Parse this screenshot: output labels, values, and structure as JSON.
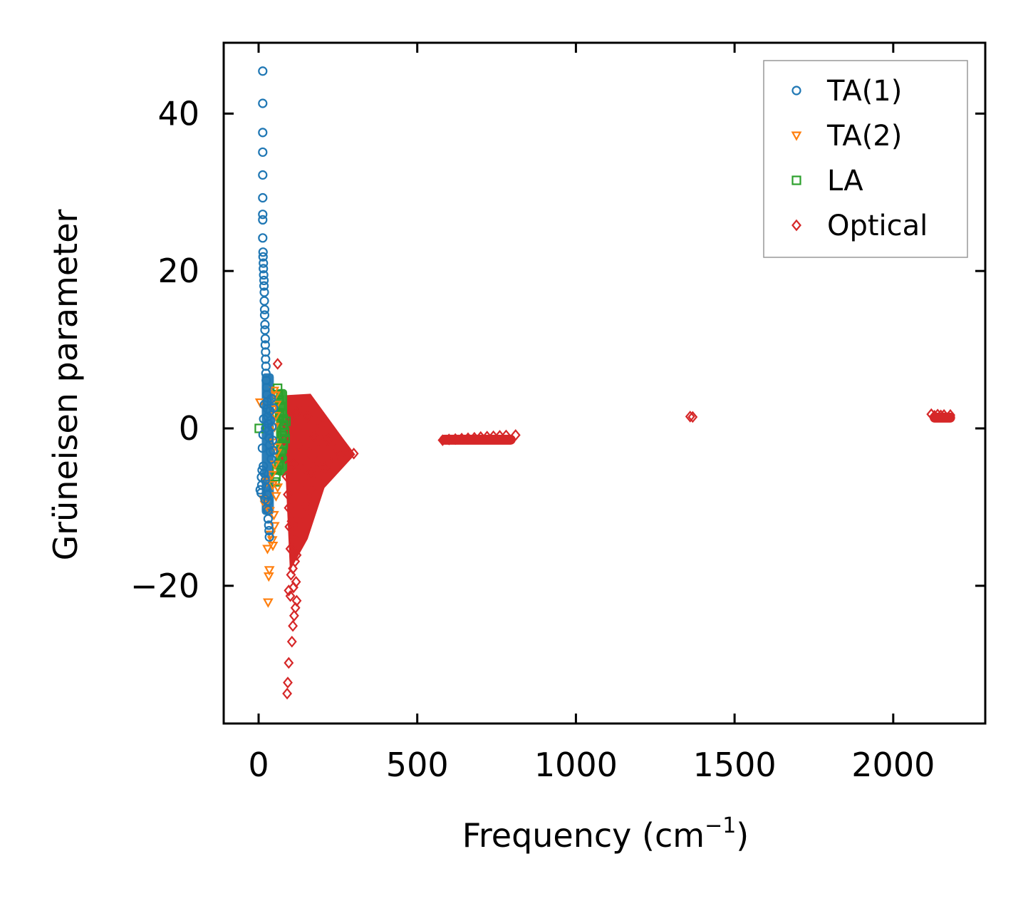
{
  "chart_data": {
    "type": "scatter",
    "title": "",
    "xlabel": "Frequency (cm",
    "xlabel_sup": "−1",
    "xlabel_end": ")",
    "ylabel": "Grüneisen parameter",
    "xlim": [
      -110,
      2290
    ],
    "ylim": [
      -37.5,
      49
    ],
    "xticks": [
      0,
      500,
      1000,
      1500,
      2000
    ],
    "xtick_labels": [
      "0",
      "500",
      "1000",
      "1500",
      "2000"
    ],
    "yticks": [
      -20,
      0,
      20,
      40
    ],
    "ytick_labels": [
      "−20",
      "0",
      "20",
      "40"
    ],
    "grid": false,
    "legend_position": "top-right",
    "series": [
      {
        "name": "TA(1)",
        "marker": "circle",
        "color": "#1f77b4",
        "points": [
          [
            13,
            45.4
          ],
          [
            13,
            41.3
          ],
          [
            13,
            37.6
          ],
          [
            13,
            35.1
          ],
          [
            13,
            32.2
          ],
          [
            13,
            29.3
          ],
          [
            13,
            27.2
          ],
          [
            13,
            26.5
          ],
          [
            13,
            24.2
          ],
          [
            14,
            22.4
          ],
          [
            14,
            21.8
          ],
          [
            15,
            21.0
          ],
          [
            15,
            20.3
          ],
          [
            16,
            19.5
          ],
          [
            17,
            18.8
          ],
          [
            17,
            18.1
          ],
          [
            18,
            17.3
          ],
          [
            18,
            16.2
          ],
          [
            19,
            15.1
          ],
          [
            19,
            14.4
          ],
          [
            20,
            13.2
          ],
          [
            20,
            12.5
          ],
          [
            21,
            11.4
          ],
          [
            21,
            10.6
          ],
          [
            22,
            9.7
          ],
          [
            22,
            8.8
          ],
          [
            23,
            7.9
          ],
          [
            23,
            7.0
          ],
          [
            24,
            6.1
          ],
          [
            25,
            5.2
          ],
          [
            26,
            4.3
          ],
          [
            27,
            3.4
          ],
          [
            28,
            2.5
          ],
          [
            29,
            1.5
          ],
          [
            30,
            0.6
          ],
          [
            31,
            -0.3
          ],
          [
            33,
            -1.2
          ],
          [
            35,
            -2.1
          ],
          [
            37,
            -3.0
          ],
          [
            40,
            -3.9
          ],
          [
            15,
            -4.8
          ],
          [
            18,
            -5.7
          ],
          [
            21,
            -6.6
          ],
          [
            24,
            -7.5
          ],
          [
            5,
            -7.8
          ],
          [
            8,
            -8.2
          ],
          [
            10,
            -7.2
          ],
          [
            27,
            -8.4
          ],
          [
            30,
            -9.3
          ],
          [
            30,
            -10.4
          ],
          [
            30,
            -11.5
          ],
          [
            32,
            -12.3
          ],
          [
            33,
            -13.0
          ],
          [
            34,
            -13.8
          ],
          [
            12,
            -2.5
          ],
          [
            14,
            -0.8
          ],
          [
            16,
            1.2
          ],
          [
            18,
            3.0
          ],
          [
            36,
            2.2
          ],
          [
            38,
            1.0
          ],
          [
            40,
            3.8
          ],
          [
            42,
            0.2
          ],
          [
            44,
            -1.5
          ],
          [
            46,
            -2.8
          ],
          [
            20,
            -9.0
          ],
          [
            25,
            -10.2
          ],
          [
            11,
            -5.3
          ],
          [
            9,
            -6.2
          ],
          [
            47,
            2.6
          ],
          [
            22,
            0.0
          ]
        ]
      },
      {
        "name": "TA(2)",
        "marker": "triangle-down",
        "color": "#ff7f0e",
        "points": [
          [
            30,
            -22.1
          ],
          [
            32,
            -18.8
          ],
          [
            34,
            -18.0
          ],
          [
            28,
            -15.3
          ],
          [
            45,
            -14.9
          ],
          [
            43,
            -14.2
          ],
          [
            38,
            -13.5
          ],
          [
            50,
            -12.4
          ],
          [
            48,
            -11.0
          ],
          [
            35,
            -10.5
          ],
          [
            20,
            -9.7
          ],
          [
            15,
            -9.0
          ],
          [
            55,
            -8.6
          ],
          [
            60,
            -7.5
          ],
          [
            25,
            -6.8
          ],
          [
            42,
            -5.9
          ],
          [
            52,
            -4.6
          ],
          [
            58,
            -3.1
          ],
          [
            47,
            -1.8
          ],
          [
            50,
            0.2
          ],
          [
            54,
            1.6
          ],
          [
            56,
            3.0
          ],
          [
            53,
            4.2
          ],
          [
            49,
            4.8
          ],
          [
            45,
            2.4
          ],
          [
            5,
            3.3
          ],
          [
            57,
            -2.4
          ],
          [
            44,
            -7.2
          ]
        ]
      },
      {
        "name": "LA",
        "marker": "square",
        "color": "#2ca02c",
        "points": [
          [
            2,
            0.0
          ],
          [
            60,
            5.1
          ],
          [
            62,
            4.3
          ],
          [
            65,
            3.6
          ],
          [
            70,
            2.8
          ],
          [
            75,
            2.0
          ],
          [
            78,
            1.2
          ],
          [
            80,
            0.4
          ],
          [
            82,
            -0.5
          ],
          [
            84,
            -1.3
          ],
          [
            78,
            -2.1
          ],
          [
            72,
            -3.0
          ],
          [
            68,
            -3.8
          ],
          [
            64,
            -4.6
          ],
          [
            58,
            -5.3
          ],
          [
            55,
            -6.1
          ],
          [
            52,
            -6.8
          ],
          [
            66,
            1.6
          ],
          [
            74,
            -0.9
          ],
          [
            86,
            0.9
          ]
        ]
      },
      {
        "name": "Optical",
        "marker": "diamond",
        "color": "#d62728",
        "points": [
          [
            90,
            -33.7
          ],
          [
            92,
            -32.3
          ],
          [
            95,
            -29.8
          ],
          [
            105,
            -27.1
          ],
          [
            108,
            -25.1
          ],
          [
            112,
            -23.8
          ],
          [
            116,
            -22.8
          ],
          [
            120,
            -21.9
          ],
          [
            100,
            -21.3
          ],
          [
            95,
            -20.6
          ],
          [
            110,
            -20.2
          ],
          [
            118,
            -19.5
          ],
          [
            102,
            -18.6
          ],
          [
            108,
            -17.8
          ],
          [
            115,
            -16.9
          ],
          [
            120,
            -16.1
          ],
          [
            100,
            -15.3
          ],
          [
            112,
            -14.2
          ],
          [
            125,
            -13.1
          ],
          [
            130,
            -12.0
          ],
          [
            97,
            -12.5
          ],
          [
            104,
            -11.8
          ],
          [
            140,
            -10.9
          ],
          [
            150,
            -9.8
          ],
          [
            160,
            -8.8
          ],
          [
            170,
            -7.8
          ],
          [
            180,
            -6.9
          ],
          [
            195,
            -5.9
          ],
          [
            210,
            -5.0
          ],
          [
            225,
            -4.4
          ],
          [
            240,
            -3.9
          ],
          [
            260,
            -3.5
          ],
          [
            280,
            -3.3
          ],
          [
            300,
            -3.2
          ],
          [
            140,
            -5.2
          ],
          [
            160,
            -3.1
          ],
          [
            175,
            -1.0
          ],
          [
            190,
            0.9
          ],
          [
            150,
            2.8
          ],
          [
            120,
            2.0
          ],
          [
            100,
            1.2
          ],
          [
            90,
            0.3
          ],
          [
            60,
            8.2
          ],
          [
            80,
            -1.5
          ],
          [
            85,
            -3.8
          ],
          [
            88,
            -6.1
          ],
          [
            92,
            -8.4
          ],
          [
            110,
            -4.5
          ],
          [
            130,
            -2.2
          ],
          [
            200,
            -2.1
          ],
          [
            220,
            -1.4
          ],
          [
            245,
            -2.6
          ],
          [
            125,
            -7.4
          ],
          [
            145,
            -6.5
          ],
          [
            165,
            -5.6
          ],
          [
            185,
            -4.3
          ],
          [
            95,
            -10.1
          ],
          [
            135,
            0.6
          ],
          [
            155,
            1.5
          ],
          [
            205,
            -0.4
          ],
          [
            270,
            -2.9
          ],
          [
            180,
            -8.5
          ],
          [
            580,
            -1.5
          ],
          [
            600,
            -1.4
          ],
          [
            620,
            -1.35
          ],
          [
            640,
            -1.3
          ],
          [
            660,
            -1.25
          ],
          [
            680,
            -1.2
          ],
          [
            700,
            -1.1
          ],
          [
            720,
            -1.05
          ],
          [
            740,
            -1.0
          ],
          [
            760,
            -0.95
          ],
          [
            780,
            -0.9
          ],
          [
            810,
            -0.85
          ],
          [
            1360,
            1.5
          ],
          [
            1368,
            1.45
          ],
          [
            2120,
            1.8
          ],
          [
            2140,
            1.75
          ],
          [
            2160,
            1.7
          ],
          [
            2180,
            1.7
          ],
          [
            2130,
            1.6
          ],
          [
            2150,
            1.65
          ]
        ]
      }
    ],
    "clusters": [
      {
        "series": "Optical",
        "x_range": [
          88,
          300
        ],
        "y_range": [
          -14,
          3
        ],
        "shape": "fan",
        "note": "dense filled region"
      },
      {
        "series": "Optical",
        "x_range": [
          570,
          810
        ],
        "y_range": [
          -1.6,
          -0.8
        ],
        "shape": "band"
      },
      {
        "series": "Optical",
        "x_range": [
          2115,
          2195
        ],
        "y_range": [
          1.5,
          2.0
        ],
        "shape": "band"
      },
      {
        "series": "TA(1)",
        "x_range": [
          10,
          48
        ],
        "y_range": [
          -11,
          7
        ],
        "shape": "column"
      },
      {
        "series": "LA",
        "x_range": [
          55,
          90
        ],
        "y_range": [
          -6,
          5
        ],
        "shape": "column"
      }
    ]
  }
}
